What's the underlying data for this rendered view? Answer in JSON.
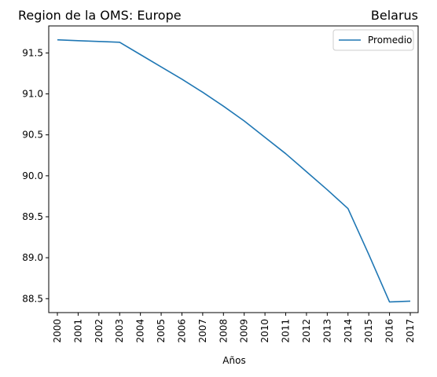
{
  "chart_data": {
    "type": "line",
    "title_left": "Region de la OMS: Europe",
    "title_right": "Belarus",
    "xlabel": "Años",
    "ylabel": "",
    "categories": [
      "2000",
      "2001",
      "2002",
      "2003",
      "2004",
      "2005",
      "2006",
      "2007",
      "2008",
      "2009",
      "2010",
      "2011",
      "2012",
      "2013",
      "2014",
      "2015",
      "2016",
      "2017"
    ],
    "y_ticks": [
      "88.5",
      "89.0",
      "89.5",
      "90.0",
      "90.5",
      "91.0",
      "91.5"
    ],
    "ylim": [
      88.33,
      91.83
    ],
    "series": [
      {
        "name": "Promedio",
        "color": "#1f77b4",
        "values": [
          91.66,
          91.65,
          91.64,
          91.63,
          91.48,
          91.33,
          91.18,
          91.02,
          90.85,
          90.67,
          90.47,
          90.27,
          90.05,
          89.83,
          89.6,
          89.04,
          88.46,
          88.47
        ]
      }
    ],
    "legend_position": "top-right",
    "grid": false
  }
}
